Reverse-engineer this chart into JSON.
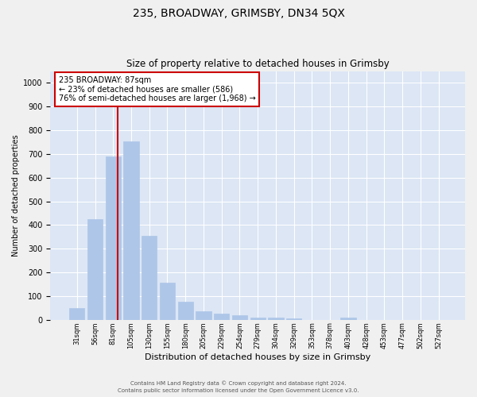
{
  "title": "235, BROADWAY, GRIMSBY, DN34 5QX",
  "subtitle": "Size of property relative to detached houses in Grimsby",
  "xlabel": "Distribution of detached houses by size in Grimsby",
  "ylabel": "Number of detached properties",
  "categories": [
    "31sqm",
    "56sqm",
    "81sqm",
    "105sqm",
    "130sqm",
    "155sqm",
    "180sqm",
    "205sqm",
    "229sqm",
    "254sqm",
    "279sqm",
    "304sqm",
    "329sqm",
    "353sqm",
    "378sqm",
    "403sqm",
    "428sqm",
    "453sqm",
    "477sqm",
    "502sqm",
    "527sqm"
  ],
  "values": [
    50,
    425,
    690,
    755,
    355,
    155,
    75,
    37,
    27,
    18,
    10,
    8,
    7,
    0,
    0,
    8,
    0,
    0,
    0,
    0,
    0
  ],
  "bar_color": "#aec6e8",
  "bar_edgecolor": "#aec6e8",
  "background_color": "#dce6f5",
  "grid_color": "#ffffff",
  "vline_color": "#cc0000",
  "annotation_text": "235 BROADWAY: 87sqm\n← 23% of detached houses are smaller (586)\n76% of semi-detached houses are larger (1,968) →",
  "annotation_box_facecolor": "#ffffff",
  "annotation_box_edgecolor": "#cc0000",
  "ylim": [
    0,
    1050
  ],
  "yticks": [
    0,
    100,
    200,
    300,
    400,
    500,
    600,
    700,
    800,
    900,
    1000
  ],
  "footer_line1": "Contains HM Land Registry data © Crown copyright and database right 2024.",
  "footer_line2": "Contains public sector information licensed under the Open Government Licence v3.0.",
  "fig_facecolor": "#f0f0f0"
}
